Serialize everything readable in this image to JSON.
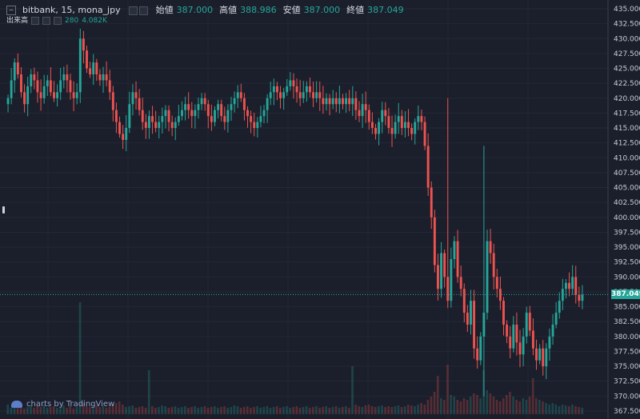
{
  "legend": {
    "symbol": "bitbank, 15, mona_jpy",
    "open_label": "始値",
    "open": "387.000",
    "high_label": "高値",
    "high": "388.986",
    "low_label": "安値",
    "low": "387.000",
    "close_label": "終値",
    "close": "387.049"
  },
  "volume_legend": {
    "label": "出来高",
    "value1": "280",
    "value2": "4.082K"
  },
  "watermark": {
    "text": "charts by TradingView"
  },
  "colors": {
    "up": "#26a69a",
    "down": "#ef5350",
    "background": "#1b1f2b",
    "price_line": "#26a69a"
  },
  "chart_data": {
    "type": "candlestick",
    "last_price": 387.049,
    "last_price_label": "387.049",
    "ylim": [
      367.5,
      435.5
    ],
    "y_ticks": [
      "435.000",
      "432.500",
      "430.000",
      "427.500",
      "425.000",
      "422.500",
      "420.000",
      "417.500",
      "415.000",
      "412.500",
      "410.000",
      "407.500",
      "405.000",
      "402.500",
      "400.000",
      "397.500",
      "395.000",
      "392.500",
      "390.000",
      "387.500",
      "385.000",
      "382.500",
      "380.000",
      "377.500",
      "375.000",
      "372.500",
      "370.000",
      "367.500"
    ],
    "y_tick_values": [
      435,
      432.5,
      430,
      427.5,
      425,
      422.5,
      420,
      417.5,
      415,
      412.5,
      410,
      407.5,
      405,
      402.5,
      400,
      397.5,
      395,
      392.5,
      390,
      387.5,
      385,
      382.5,
      380,
      377.5,
      375,
      372.5,
      370,
      367.5
    ],
    "closes": [
      420,
      423,
      426,
      424,
      421,
      419,
      422,
      424,
      423,
      421,
      420,
      422,
      423,
      421,
      420,
      421,
      423,
      424,
      423,
      421,
      420,
      421,
      430,
      428,
      425,
      424,
      426,
      424,
      423,
      424,
      423,
      421,
      418,
      416,
      414,
      413,
      415,
      419,
      421,
      420,
      418,
      416,
      415,
      417,
      416,
      415,
      416,
      417,
      418,
      416,
      415,
      416,
      417,
      418,
      419,
      418,
      417,
      418,
      419,
      420,
      419,
      417,
      416,
      418,
      419,
      417,
      416,
      418,
      419,
      420,
      421,
      420,
      418,
      417,
      416,
      415,
      416,
      417,
      418,
      420,
      421,
      422,
      421,
      420,
      421,
      422,
      423,
      422,
      421,
      420,
      421,
      422,
      421,
      420,
      421,
      420,
      419,
      420,
      419,
      420,
      419,
      420,
      419,
      420,
      419,
      420,
      418,
      417,
      419,
      418,
      416,
      415,
      414,
      416,
      418,
      417,
      415,
      414,
      416,
      417,
      415,
      416,
      415,
      414,
      416,
      417,
      416,
      412,
      405,
      400,
      392,
      388,
      394,
      390,
      386,
      393,
      396,
      390,
      388,
      384,
      382,
      386,
      378,
      376,
      380,
      384,
      396,
      394,
      390,
      388,
      386,
      382,
      380,
      378,
      382,
      379,
      377,
      380,
      384,
      381,
      378,
      376,
      378,
      375,
      378,
      380,
      382,
      384,
      386,
      388,
      389,
      388,
      390,
      387,
      386,
      387
    ],
    "volume": [
      12,
      8,
      10,
      9,
      14,
      7,
      9,
      11,
      8,
      10,
      9,
      12,
      8,
      9,
      10,
      8,
      9,
      11,
      8,
      10,
      7,
      9,
      40,
      14,
      10,
      9,
      8,
      11,
      9,
      10,
      8,
      9,
      12,
      14,
      16,
      12,
      9,
      10,
      11,
      8,
      9,
      10,
      8,
      9,
      10,
      8,
      9,
      11,
      10,
      8,
      9,
      10,
      8,
      9,
      10,
      8,
      9,
      10,
      8,
      9,
      10,
      8,
      9,
      10,
      8,
      9,
      10,
      8,
      9,
      11,
      10,
      8,
      9,
      10,
      8,
      9,
      10,
      8,
      9,
      10,
      8,
      9,
      10,
      8,
      9,
      10,
      8,
      9,
      10,
      8,
      9,
      10,
      8,
      9,
      10,
      8,
      9,
      10,
      8,
      9,
      10,
      8,
      9,
      10,
      8,
      9,
      12,
      10,
      9,
      11,
      12,
      10,
      9,
      10,
      11,
      9,
      10,
      9,
      10,
      11,
      9,
      10,
      12,
      11,
      10,
      12,
      14,
      12,
      18,
      22,
      28,
      30,
      20,
      18,
      16,
      24,
      22,
      18,
      16,
      20,
      18,
      22,
      26,
      24,
      20,
      18,
      30,
      26,
      22,
      18,
      16,
      20,
      24,
      28,
      22,
      18,
      16,
      20,
      18,
      22,
      24,
      20,
      18,
      16,
      14,
      12,
      14,
      12,
      10,
      12,
      11,
      10,
      12,
      10,
      9,
      8
    ],
    "volume_max": 140,
    "volume_spikes": {
      "22": 140,
      "43": 55,
      "105": 60,
      "131": 48,
      "134": 62,
      "145": 55,
      "160": 45
    }
  }
}
